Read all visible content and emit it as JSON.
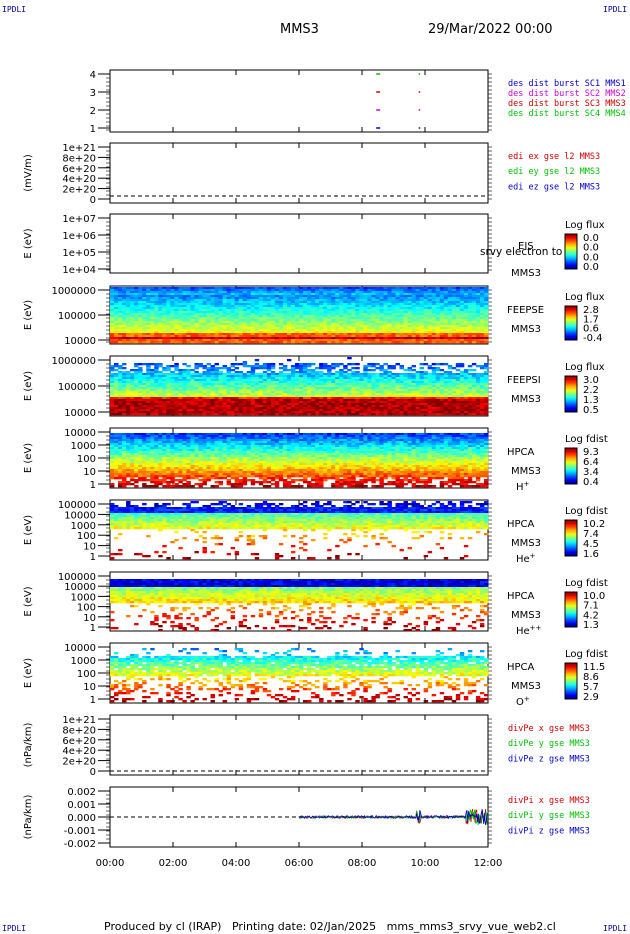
{
  "corner_label": "IPDLI",
  "header": {
    "spacecraft": "MMS3",
    "datetime": "29/Mar/2022 00:00"
  },
  "footer": {
    "produced_by": "Produced by cl (IRAP)",
    "printing_date": "Printing date: 02/Jan/2025",
    "script": "mms_mms3_srvy_vue_web2.cl"
  },
  "time_ticks": [
    "00:00",
    "02:00",
    "04:00",
    "06:00",
    "08:00",
    "10:00",
    "12:00"
  ],
  "colors": {
    "blue": "#0000c8",
    "magenta": "#d000d0",
    "red": "#d00000",
    "green": "#00c000"
  },
  "panels": [
    {
      "id": "burst",
      "ylabel": "",
      "ticks": [
        "4",
        "3",
        "2",
        "1"
      ],
      "legend": [
        {
          "text": "des dist burst SC1 MMS1",
          "color": "#0000c8"
        },
        {
          "text": "des dist burst SC2 MMS2",
          "color": "#d000d0"
        },
        {
          "text": "des dist burst SC3 MMS3",
          "color": "#d00000"
        },
        {
          "text": "des dist burst SC4 MMS4",
          "color": "#00c000"
        }
      ]
    },
    {
      "id": "edi",
      "ylabel": "(mV/m)",
      "ticks": [
        "1e+21",
        "8e+20",
        "6e+20",
        "4e+20",
        "2e+20",
        "0"
      ],
      "legend": [
        {
          "text": "edi ex gse l2 MMS3",
          "color": "#d00000"
        },
        {
          "text": "edi ey gse l2 MMS3",
          "color": "#00c000"
        },
        {
          "text": "edi ez gse l2 MMS3",
          "color": "#0000c8"
        }
      ]
    },
    {
      "id": "eis",
      "ylabel": "E (eV)",
      "ticks": [
        "1e+07",
        "1e+06",
        "1e+05",
        "1e+04"
      ],
      "labels": [
        "EIS",
        "MMS3"
      ],
      "overlay": "srvy electron to",
      "cbar_title": "Log flux",
      "cbar_ticks": [
        "0.0",
        "0.0",
        "0.0",
        "0.0"
      ]
    },
    {
      "id": "feepse",
      "ylabel": "E (eV)",
      "ticks": [
        "1000000",
        "100000",
        "10000"
      ],
      "labels": [
        "FEEPSE",
        "MMS3"
      ],
      "cbar_title": "Log flux",
      "cbar_ticks": [
        "2.8",
        "1.7",
        "0.6",
        "-0.4"
      ]
    },
    {
      "id": "feepsi",
      "ylabel": "E (eV)",
      "ticks": [
        "1000000",
        "100000",
        "10000"
      ],
      "labels": [
        "FEEPSI",
        "MMS3"
      ],
      "cbar_title": "Log flux",
      "cbar_ticks": [
        "3.0",
        "2.2",
        "1.3",
        "0.5"
      ]
    },
    {
      "id": "hpca_h",
      "ylabel": "E (eV)",
      "ticks": [
        "10000",
        "1000",
        "100",
        "10",
        "1"
      ],
      "labels": [
        "HPCA",
        "MMS3"
      ],
      "species": "H",
      "species_sup": "+",
      "cbar_title": "Log fdist",
      "cbar_ticks": [
        "9.3",
        "6.4",
        "3.4",
        "0.4"
      ]
    },
    {
      "id": "hpca_he",
      "ylabel": "E (eV)",
      "ticks": [
        "100000",
        "10000",
        "1000",
        "100",
        "10",
        "1"
      ],
      "labels": [
        "HPCA",
        "MMS3"
      ],
      "species": "He",
      "species_sup": "+",
      "cbar_title": "Log fdist",
      "cbar_ticks": [
        "10.2",
        "7.4",
        "4.5",
        "1.6"
      ]
    },
    {
      "id": "hpca_hepp",
      "ylabel": "E (eV)",
      "ticks": [
        "100000",
        "10000",
        "1000",
        "100",
        "10",
        "1"
      ],
      "labels": [
        "HPCA",
        "MMS3"
      ],
      "species": "He",
      "species_sup": "++",
      "cbar_title": "Log fdist",
      "cbar_ticks": [
        "10.0",
        "7.1",
        "4.2",
        "1.3"
      ]
    },
    {
      "id": "hpca_o",
      "ylabel": "E (eV)",
      "ticks": [
        "10000",
        "1000",
        "100",
        "10",
        "1"
      ],
      "labels": [
        "HPCA",
        "MMS3"
      ],
      "species": "O",
      "species_sup": "+",
      "cbar_title": "Log fdist",
      "cbar_ticks": [
        "11.5",
        "8.6",
        "5.7",
        "2.9"
      ]
    },
    {
      "id": "divpe",
      "ylabel": "(nPa/km)",
      "ticks": [
        "1e+21",
        "8e+20",
        "6e+20",
        "4e+20",
        "2e+20",
        "0"
      ],
      "legend": [
        {
          "text": "divPe x gse MMS3",
          "color": "#d00000"
        },
        {
          "text": "divPe y gse MMS3",
          "color": "#00c000"
        },
        {
          "text": "divPe z gse MMS3",
          "color": "#0000c8"
        }
      ]
    },
    {
      "id": "divpi",
      "ylabel": "(nPa/km)",
      "ticks": [
        "0.002",
        "0.001",
        "0.000",
        "-0.001",
        "-0.002"
      ],
      "legend": [
        {
          "text": "divPi x gse MMS3",
          "color": "#d00000"
        },
        {
          "text": "divPi y gse MMS3",
          "color": "#00c000"
        },
        {
          "text": "divPi z gse MMS3",
          "color": "#0000c8"
        }
      ]
    }
  ],
  "chart_data": [
    {
      "type": "scatter",
      "panel": "burst",
      "ylim": [
        0.5,
        4.5
      ],
      "xlim": [
        0,
        12
      ],
      "series": [
        {
          "name": "des dist burst SC1 MMS1",
          "x": [
            8.45,
            9.8
          ],
          "y": [
            1,
            1
          ]
        },
        {
          "name": "des dist burst SC2 MMS2",
          "x": [
            8.45,
            9.8
          ],
          "y": [
            2,
            2
          ]
        },
        {
          "name": "des dist burst SC3 MMS3",
          "x": [
            8.45,
            9.8
          ],
          "y": [
            3,
            3
          ]
        },
        {
          "name": "des dist burst SC4 MMS4",
          "x": [
            8.45,
            9.8
          ],
          "y": [
            4,
            4
          ]
        }
      ]
    },
    {
      "type": "line",
      "panel": "edi",
      "ylim": [
        0,
        1e+21
      ],
      "xlim": [
        0,
        12
      ],
      "series": []
    },
    {
      "type": "heatmap",
      "panel": "eis",
      "xlim": [
        0,
        12
      ],
      "ylim": [
        10000.0,
        10000000.0
      ],
      "values": []
    },
    {
      "type": "heatmap",
      "panel": "feepse",
      "xlim": [
        0,
        12
      ],
      "ylim": [
        10000.0,
        1000000.0
      ],
      "zlim": [
        -0.4,
        2.8
      ]
    },
    {
      "type": "heatmap",
      "panel": "feepsi",
      "xlim": [
        0,
        12
      ],
      "ylim": [
        10000.0,
        1000000.0
      ],
      "zlim": [
        0.5,
        3.0
      ]
    },
    {
      "type": "heatmap",
      "panel": "hpca_h",
      "xlim": [
        0,
        12
      ],
      "ylim": [
        1,
        40000
      ],
      "zlim": [
        0.4,
        9.3
      ]
    },
    {
      "type": "heatmap",
      "panel": "hpca_he",
      "xlim": [
        0,
        12
      ],
      "ylim": [
        1,
        100000
      ],
      "zlim": [
        1.6,
        10.2
      ]
    },
    {
      "type": "heatmap",
      "panel": "hpca_hepp",
      "xlim": [
        0,
        12
      ],
      "ylim": [
        1,
        100000
      ],
      "zlim": [
        1.3,
        10.0
      ]
    },
    {
      "type": "heatmap",
      "panel": "hpca_o",
      "xlim": [
        0,
        12
      ],
      "ylim": [
        1,
        40000
      ],
      "zlim": [
        2.9,
        11.5
      ]
    },
    {
      "type": "line",
      "panel": "divpe",
      "ylim": [
        0,
        1e+21
      ],
      "xlim": [
        0,
        12
      ],
      "series": []
    },
    {
      "type": "line",
      "panel": "divpi",
      "ylim": [
        -0.0025,
        0.0025
      ],
      "xlim": [
        0,
        12
      ],
      "series": [
        {
          "name": "divPi x gse MMS3",
          "x_range": [
            6.0,
            12.0
          ]
        },
        {
          "name": "divPi y gse MMS3",
          "x_range": [
            6.0,
            12.0
          ]
        },
        {
          "name": "divPi z gse MMS3",
          "x_range": [
            6.0,
            12.0
          ]
        }
      ]
    }
  ]
}
